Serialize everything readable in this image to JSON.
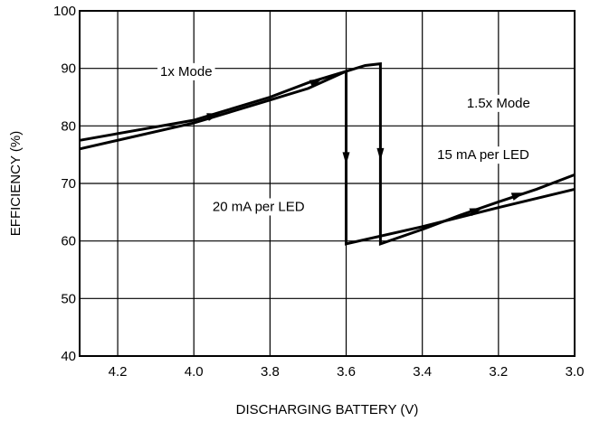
{
  "chart_data": {
    "type": "line",
    "title": "",
    "xlabel": "DISCHARGING BATTERY (V)",
    "ylabel": "EFFICIENCY (%)",
    "xlim": [
      4.3,
      3.0
    ],
    "ylim": [
      40,
      100
    ],
    "x_reversed": true,
    "grid": true,
    "x_ticks": [
      4.2,
      4.0,
      3.8,
      3.6,
      3.4,
      3.2,
      3.0
    ],
    "x_tick_labels": [
      "4.2",
      "4.0",
      "3.8",
      "3.6",
      "3.4",
      "3.2",
      "3.0"
    ],
    "y_ticks": [
      40,
      50,
      60,
      70,
      80,
      90,
      100
    ],
    "y_tick_labels": [
      "40",
      "50",
      "60",
      "70",
      "80",
      "90",
      "100"
    ],
    "series": [
      {
        "name": "20 mA per LED",
        "points": [
          [
            4.3,
            76.0
          ],
          [
            4.0,
            80.5
          ],
          [
            3.8,
            84.5
          ],
          [
            3.7,
            86.5
          ],
          [
            3.65,
            88.0
          ],
          [
            3.6,
            89.5
          ],
          [
            3.6,
            59.5
          ],
          [
            3.4,
            62.5
          ],
          [
            3.2,
            65.8
          ],
          [
            3.0,
            69.0
          ]
        ]
      },
      {
        "name": "15 mA per LED",
        "points": [
          [
            4.3,
            77.5
          ],
          [
            4.0,
            81.0
          ],
          [
            3.8,
            85.0
          ],
          [
            3.7,
            87.5
          ],
          [
            3.6,
            89.5
          ],
          [
            3.55,
            90.5
          ],
          [
            3.51,
            90.8
          ],
          [
            3.51,
            59.5
          ],
          [
            3.4,
            62.0
          ],
          [
            3.3,
            64.5
          ],
          [
            3.2,
            66.8
          ],
          [
            3.1,
            69.0
          ],
          [
            3.0,
            71.5
          ]
        ]
      }
    ],
    "annotations": [
      {
        "text": "1x Mode",
        "x": 4.02,
        "y": 89.5
      },
      {
        "text": "1.5x Mode",
        "x": 3.2,
        "y": 84.0
      },
      {
        "text": "15 mA per LED",
        "x": 3.24,
        "y": 75.0
      },
      {
        "text": "20 mA per LED",
        "x": 3.83,
        "y": 66.0
      }
    ],
    "arrows": [
      {
        "series": 0,
        "x": 3.95,
        "y": 81.8,
        "direction": "right"
      },
      {
        "series": 0,
        "x": 3.68,
        "y": 87.7,
        "direction": "right"
      },
      {
        "series": 0,
        "x": 3.6,
        "y": 74.5,
        "direction": "down"
      },
      {
        "series": 1,
        "x": 3.51,
        "y": 75.2,
        "direction": "down"
      },
      {
        "series": 1,
        "x": 3.26,
        "y": 65.3,
        "direction": "right"
      },
      {
        "series": 1,
        "x": 3.15,
        "y": 68.0,
        "direction": "right"
      }
    ],
    "line_color": "#000000"
  }
}
